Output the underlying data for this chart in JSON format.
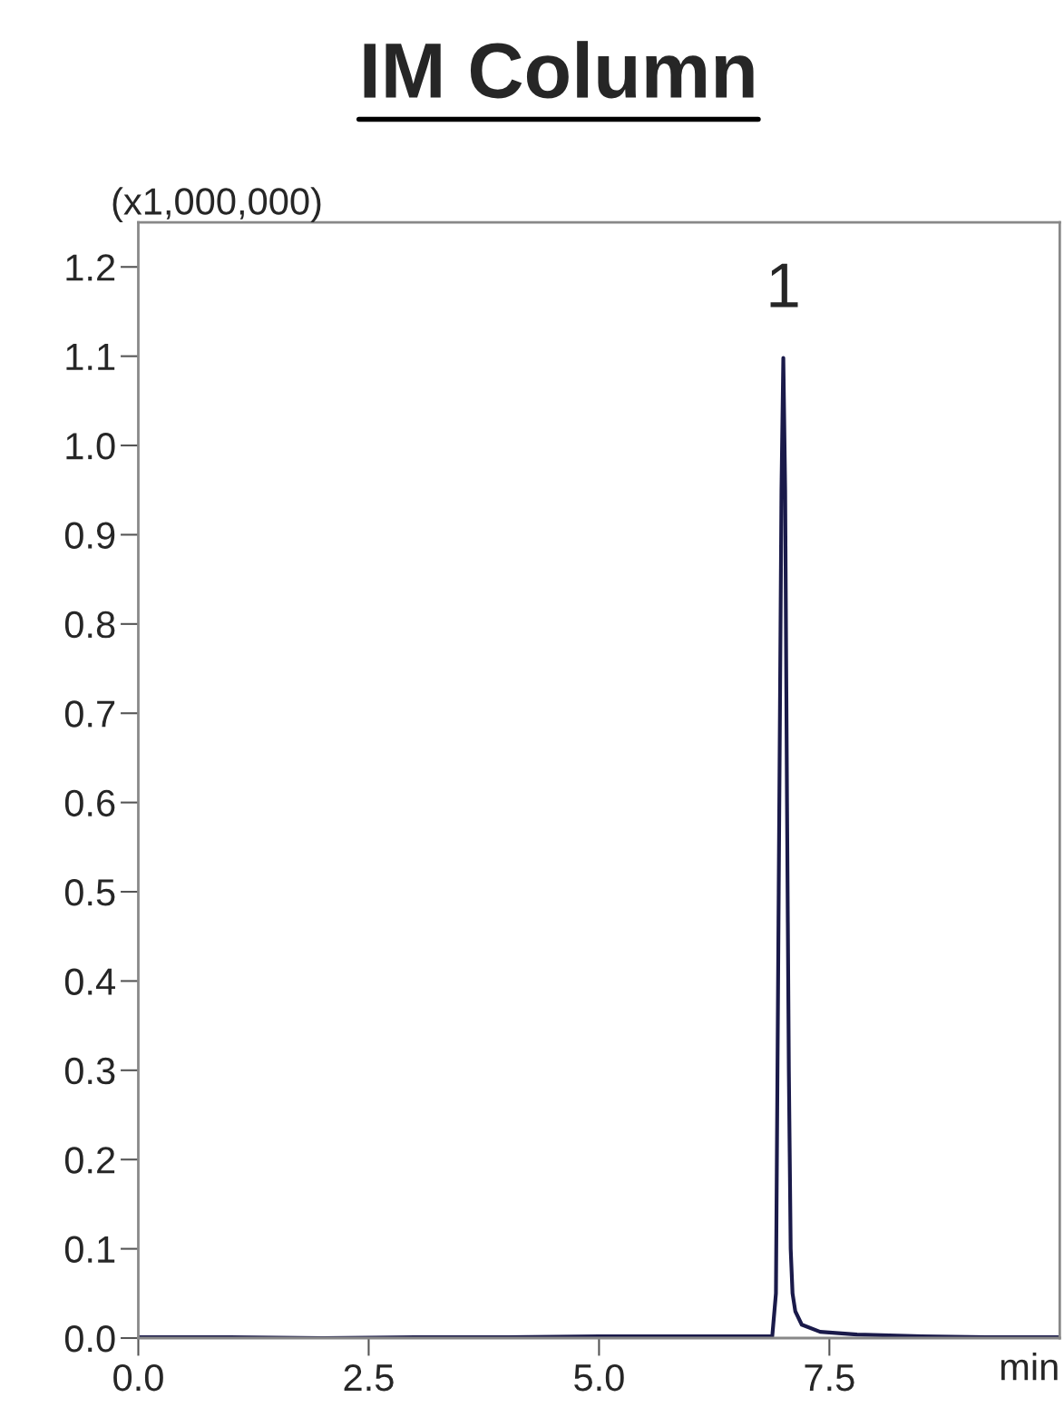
{
  "chart_data": {
    "type": "line",
    "title": "IM Column",
    "xlabel": "min",
    "ylabel": "(x1,000,000)",
    "x": [
      0,
      1,
      2,
      3,
      4,
      5,
      6,
      6.88,
      6.92,
      6.95,
      6.98,
      7.0,
      7.02,
      7.04,
      7.06,
      7.08,
      7.1,
      7.13,
      7.2,
      7.4,
      7.8,
      8.5,
      9.2,
      10
    ],
    "series": [
      {
        "color": "#1a1a4a",
        "values": [
          0.001,
          0.001,
          0.0,
          0.001,
          0.001,
          0.002,
          0.002,
          0.002,
          0.05,
          0.5,
          0.95,
          1.098,
          0.95,
          0.6,
          0.3,
          0.1,
          0.05,
          0.03,
          0.015,
          0.007,
          0.004,
          0.002,
          0.001,
          0.001
        ]
      }
    ],
    "annotations": [
      {
        "text": "1",
        "x": 7.0,
        "y": 1.098
      }
    ],
    "xlim": [
      0,
      10
    ],
    "ylim": [
      0,
      1.25
    ],
    "xticks": [
      {
        "value": 0,
        "label": "0.0"
      },
      2.5,
      {
        "value": 5,
        "label": "5.0"
      },
      7.5
    ],
    "yticks": [
      {
        "value": 0,
        "label": "0.0"
      },
      0.1,
      0.2,
      0.3,
      0.4,
      0.5,
      0.6,
      0.7,
      0.8,
      0.9,
      {
        "value": 1,
        "label": "1.0"
      },
      1.1,
      1.2
    ],
    "grid": false,
    "marker": "none",
    "line_style": "solid"
  }
}
